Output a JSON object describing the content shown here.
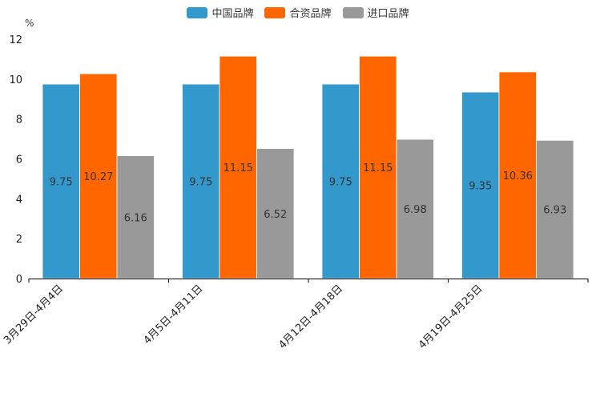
{
  "chart_data": {
    "type": "bar",
    "unit": "%",
    "categories": [
      "3月29日-4月4日",
      "4月5日-4月11日",
      "4月12日-4月18日",
      "4月19日-4月25日"
    ],
    "series": [
      {
        "name": "中国品牌",
        "color": "#3399cc",
        "values": [
          9.75,
          9.75,
          9.75,
          9.35
        ]
      },
      {
        "name": "合资品牌",
        "color": "#ff6600",
        "values": [
          10.27,
          11.15,
          11.15,
          10.36
        ]
      },
      {
        "name": "进口品牌",
        "color": "#999999",
        "values": [
          6.16,
          6.52,
          6.98,
          6.93
        ]
      }
    ],
    "ylim": [
      0,
      12
    ],
    "yticks": [
      0,
      2,
      4,
      6,
      8,
      10,
      12
    ],
    "legend": "top-center"
  }
}
